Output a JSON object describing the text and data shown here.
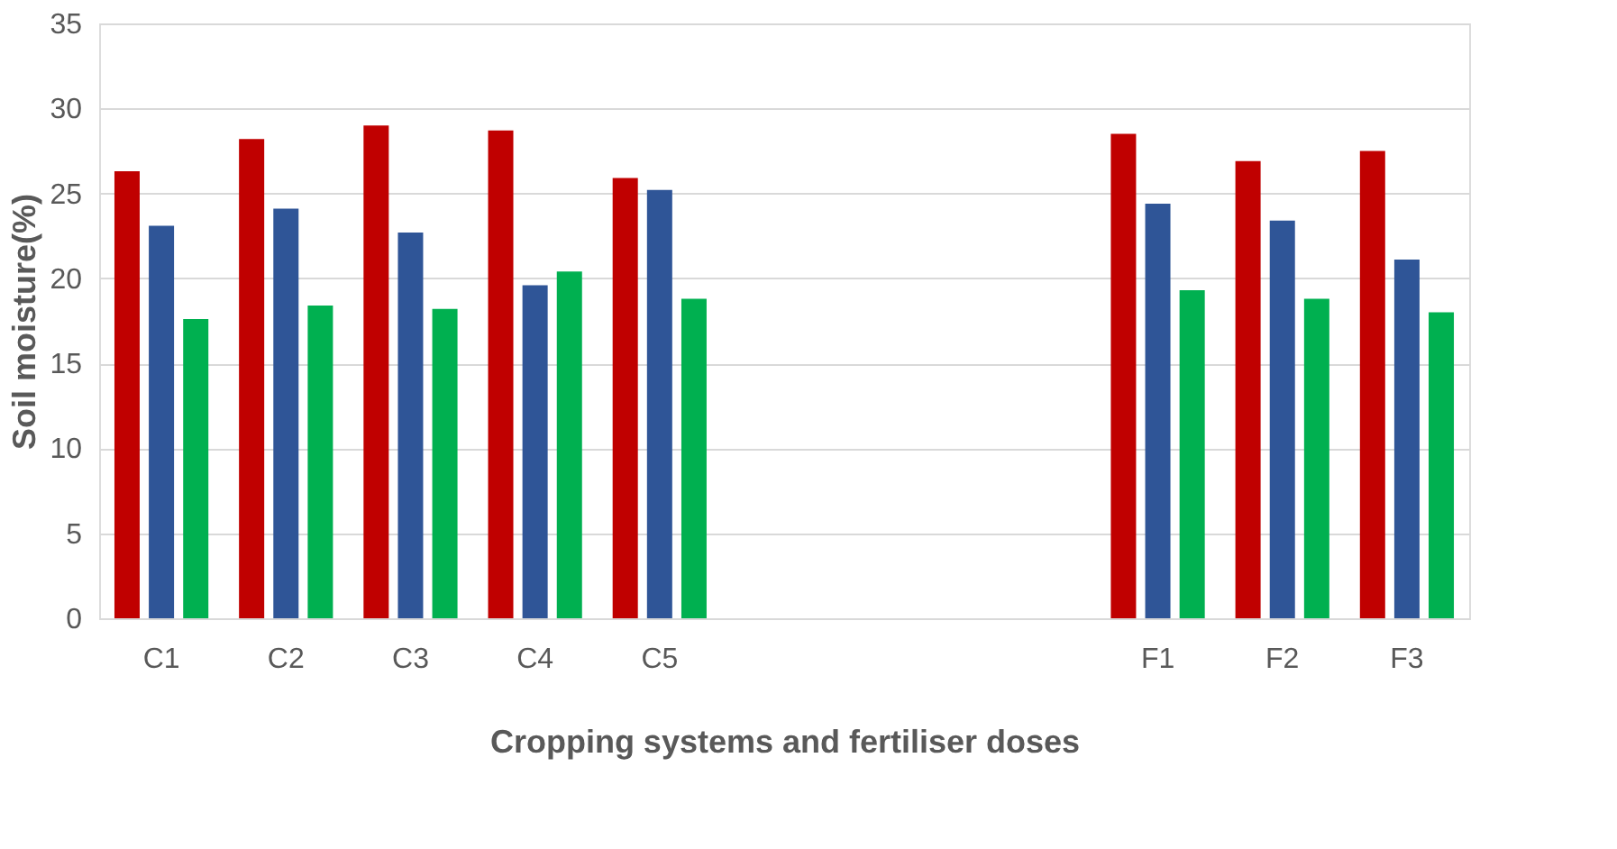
{
  "chart_data": {
    "type": "bar",
    "xlabel": "Cropping systems and fertiliser doses",
    "ylabel": "Soil moisture(%)",
    "categories": [
      "C1",
      "C2",
      "C3",
      "C4",
      "C5",
      null,
      null,
      null,
      "F1",
      "F2",
      "F3"
    ],
    "series": [
      {
        "color": "#c00000",
        "values": [
          26.3,
          28.2,
          29.0,
          28.7,
          25.9,
          null,
          null,
          null,
          28.5,
          26.9,
          27.5
        ]
      },
      {
        "color": "#2f5597",
        "values": [
          23.1,
          24.1,
          22.7,
          19.6,
          25.2,
          null,
          null,
          null,
          24.4,
          23.4,
          21.1
        ]
      },
      {
        "color": "#00b050",
        "values": [
          17.6,
          18.4,
          18.2,
          20.4,
          18.8,
          null,
          null,
          null,
          19.3,
          18.8,
          18.0
        ]
      }
    ],
    "ylim": [
      0,
      35
    ],
    "yticks": [
      0,
      5,
      10,
      15,
      20,
      25,
      30,
      35
    ],
    "grid": "y",
    "legend": false
  }
}
